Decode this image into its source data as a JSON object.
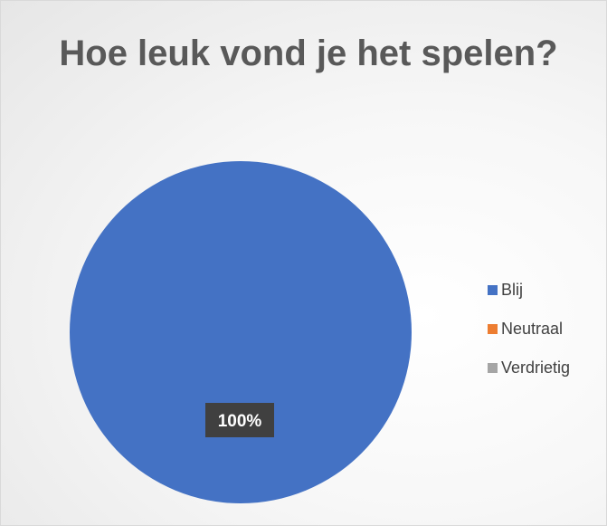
{
  "chart_data": {
    "type": "pie",
    "title": "Hoe leuk vond je het spelen?",
    "categories": [
      "Blij",
      "Neutraal",
      "Verdrietig"
    ],
    "values": [
      100,
      0,
      0
    ],
    "data_labels": [
      "100%"
    ],
    "colors": [
      "#4472c4",
      "#ed7d31",
      "#a5a5a5"
    ],
    "legend_position": "right"
  }
}
